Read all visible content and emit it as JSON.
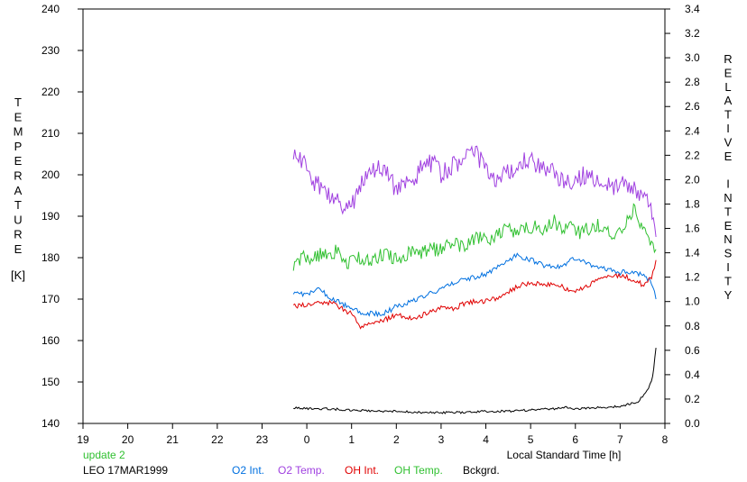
{
  "chart_data": {
    "type": "line",
    "xlabel": "Local Standard Time [h]",
    "ylabel_left": "TEMPERATURE",
    "ylabel_left_unit": "[K]",
    "ylabel_right": "RELATIVE INTENSITY",
    "xlim": [
      19,
      32
    ],
    "ylim_left": [
      140,
      240
    ],
    "ylim_right": [
      0.0,
      3.4
    ],
    "grid": false,
    "x_ticks": [
      19,
      20,
      21,
      22,
      23,
      24,
      25,
      26,
      27,
      28,
      29,
      30,
      31,
      32
    ],
    "x_tick_labels": [
      "19",
      "20",
      "21",
      "22",
      "23",
      "0",
      "1",
      "2",
      "3",
      "4",
      "5",
      "6",
      "7",
      "8"
    ],
    "y_left_ticks": [
      140,
      150,
      160,
      170,
      180,
      190,
      200,
      210,
      220,
      230,
      240
    ],
    "y_right_ticks": [
      "0.0",
      "0.2",
      "0.4",
      "0.6",
      "0.8",
      "1.0",
      "1.2",
      "1.4",
      "1.6",
      "1.8",
      "2.0",
      "2.2",
      "2.4",
      "2.6",
      "2.8",
      "3.0",
      "3.2",
      "3.4"
    ],
    "notes": {
      "update": "update 2",
      "station": "LEO 17MAR1999"
    },
    "series": [
      {
        "name": "O2 Int.",
        "axis": "right",
        "color": "#0070e0",
        "x": [
          23.7,
          24.0,
          24.3,
          24.5,
          24.8,
          25.0,
          25.3,
          25.7,
          26.0,
          26.3,
          26.7,
          27.0,
          27.3,
          27.7,
          28.0,
          28.3,
          28.7,
          29.0,
          29.3,
          29.7,
          30.0,
          30.3,
          30.7,
          31.0,
          31.3,
          31.5,
          31.7,
          31.8
        ],
        "y": [
          1.08,
          1.06,
          1.1,
          1.04,
          0.98,
          0.94,
          0.9,
          0.9,
          0.96,
          1.0,
          1.06,
          1.1,
          1.16,
          1.2,
          1.22,
          1.3,
          1.38,
          1.34,
          1.3,
          1.28,
          1.36,
          1.3,
          1.26,
          1.24,
          1.24,
          1.22,
          1.16,
          1.02
        ]
      },
      {
        "name": "O2 Temp.",
        "axis": "left",
        "color": "#a040e0",
        "x": [
          23.7,
          23.85,
          24.0,
          24.2,
          24.4,
          24.6,
          24.8,
          25.0,
          25.2,
          25.4,
          25.6,
          25.8,
          26.0,
          26.2,
          26.4,
          26.6,
          26.8,
          27.0,
          27.2,
          27.4,
          27.6,
          27.8,
          28.0,
          28.2,
          28.4,
          28.6,
          28.8,
          29.0,
          29.2,
          29.4,
          29.6,
          29.8,
          30.0,
          30.2,
          30.4,
          30.6,
          30.8,
          31.0,
          31.2,
          31.4,
          31.6,
          31.8
        ],
        "y": [
          206,
          204,
          201,
          198,
          196,
          194,
          193,
          192,
          198,
          200,
          202,
          201,
          196,
          197,
          199,
          202,
          203,
          200,
          202,
          203,
          204,
          205,
          201,
          199,
          200,
          201,
          203,
          203,
          202,
          201,
          200,
          198,
          199,
          200,
          199,
          198,
          197,
          198,
          197,
          196,
          195,
          185
        ]
      },
      {
        "name": "OH Int.",
        "axis": "right",
        "color": "#e00000",
        "x": [
          23.7,
          24.0,
          24.3,
          24.6,
          25.0,
          25.2,
          25.5,
          25.8,
          26.0,
          26.3,
          26.7,
          27.0,
          27.3,
          27.6,
          28.0,
          28.3,
          28.7,
          29.0,
          29.3,
          29.7,
          30.0,
          30.3,
          30.7,
          31.0,
          31.3,
          31.5,
          31.7,
          31.8
        ],
        "y": [
          0.96,
          0.98,
          1.0,
          0.98,
          0.9,
          0.8,
          0.84,
          0.86,
          0.9,
          0.86,
          0.9,
          0.96,
          0.94,
          1.0,
          1.0,
          1.04,
          1.12,
          1.16,
          1.14,
          1.12,
          1.08,
          1.14,
          1.2,
          1.22,
          1.18,
          1.14,
          1.2,
          1.34
        ]
      },
      {
        "name": "OH Temp.",
        "axis": "left",
        "color": "#30c030",
        "x": [
          23.7,
          23.9,
          24.1,
          24.3,
          24.5,
          24.7,
          24.9,
          25.1,
          25.3,
          25.5,
          25.7,
          25.9,
          26.1,
          26.3,
          26.5,
          26.7,
          26.9,
          27.1,
          27.3,
          27.5,
          27.7,
          27.9,
          28.1,
          28.3,
          28.5,
          28.7,
          28.9,
          29.1,
          29.3,
          29.5,
          29.7,
          29.9,
          30.1,
          30.3,
          30.5,
          30.7,
          30.9,
          31.1,
          31.3,
          31.5,
          31.7,
          31.8
        ],
        "y": [
          178,
          180,
          179,
          181,
          180,
          182,
          178,
          180,
          180,
          179,
          181,
          180,
          179,
          182,
          181,
          182,
          182,
          183,
          184,
          182,
          184,
          185,
          184,
          186,
          187,
          186,
          187,
          188,
          187,
          189,
          187,
          188,
          186,
          187,
          188,
          186,
          185,
          187,
          192,
          186,
          184,
          182
        ]
      },
      {
        "name": "Bckgrd.",
        "axis": "right",
        "color": "#000000",
        "x": [
          23.7,
          24.0,
          24.5,
          25.0,
          25.5,
          26.0,
          26.5,
          27.0,
          27.5,
          28.0,
          28.5,
          29.0,
          29.5,
          29.8,
          30.0,
          30.5,
          31.0,
          31.2,
          31.4,
          31.5,
          31.6,
          31.7,
          31.75,
          31.8
        ],
        "y": [
          0.13,
          0.12,
          0.12,
          0.11,
          0.1,
          0.1,
          0.09,
          0.09,
          0.09,
          0.1,
          0.1,
          0.11,
          0.12,
          0.13,
          0.12,
          0.13,
          0.14,
          0.16,
          0.18,
          0.22,
          0.27,
          0.34,
          0.45,
          0.62
        ]
      }
    ]
  }
}
